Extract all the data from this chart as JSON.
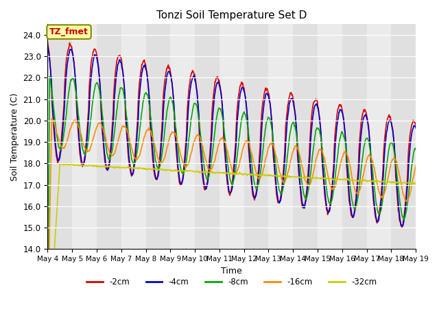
{
  "title": "Tonzi Soil Temperature Set D",
  "xlabel": "Time",
  "ylabel": "Soil Temperature (C)",
  "ylim": [
    14.0,
    24.5
  ],
  "yticks": [
    14.0,
    15.0,
    16.0,
    17.0,
    18.0,
    19.0,
    20.0,
    21.0,
    22.0,
    23.0,
    24.0
  ],
  "fig_bg_color": "#ffffff",
  "plot_bg_color": "#e8e8e8",
  "annotation_text": "TZ_fmet",
  "annotation_bg": "#ffffaa",
  "annotation_border": "#888800",
  "series_colors": {
    "-2cm": "#dd0000",
    "-4cm": "#0000cc",
    "-8cm": "#00aa00",
    "-16cm": "#ff8800",
    "-32cm": "#cccc00"
  },
  "lw": 1.2,
  "xtick_labels": [
    "May 4",
    "May 5",
    "May 6",
    "May 7",
    "May 8",
    "May 9",
    "May 10",
    "May 11",
    "May 12",
    "May 13",
    "May 14",
    "May 15",
    "May 16",
    "May 17",
    "May 18",
    "May 19"
  ],
  "n_days": 16,
  "pts_per_day": 48
}
